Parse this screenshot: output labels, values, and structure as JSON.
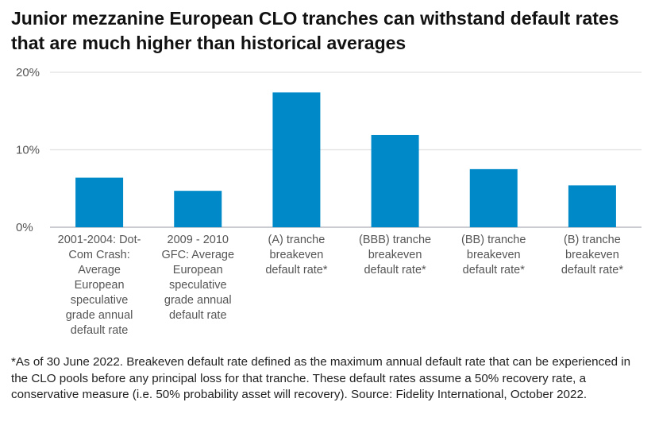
{
  "chart_data": {
    "type": "bar",
    "title": "Junior mezzanine European CLO tranches can withstand default rates that are much higher than historical averages",
    "categories": [
      [
        "2001-2004: Dot-",
        "Com Crash:",
        "Average",
        "European",
        "speculative",
        "grade annual",
        "default rate"
      ],
      [
        "2009 - 2010",
        "GFC: Average",
        "European",
        "speculative",
        "grade annual",
        "default rate"
      ],
      [
        "(A) tranche",
        "breakeven",
        "default rate*"
      ],
      [
        "(BBB) tranche",
        "breakeven",
        "default rate*"
      ],
      [
        "(BB) tranche",
        "breakeven",
        "default rate*"
      ],
      [
        "(B) tranche",
        "breakeven",
        "default rate*"
      ]
    ],
    "values": [
      6.4,
      4.7,
      17.4,
      11.9,
      7.5,
      5.4
    ],
    "unit": "%",
    "ylim": [
      0,
      20
    ],
    "yticks": [
      "0%",
      "10%",
      "20%"
    ],
    "grid": true,
    "bar_color": "#0089C8",
    "note": "*As of 30 June 2022. Breakeven default rate defined as the maximum annual default rate that can be experienced in the CLO pools before any principal loss for that tranche. These default rates assume a 50% recovery rate, a conservative measure (i.e. 50% probability asset will recovery). Source: Fidelity International, October 2022."
  }
}
